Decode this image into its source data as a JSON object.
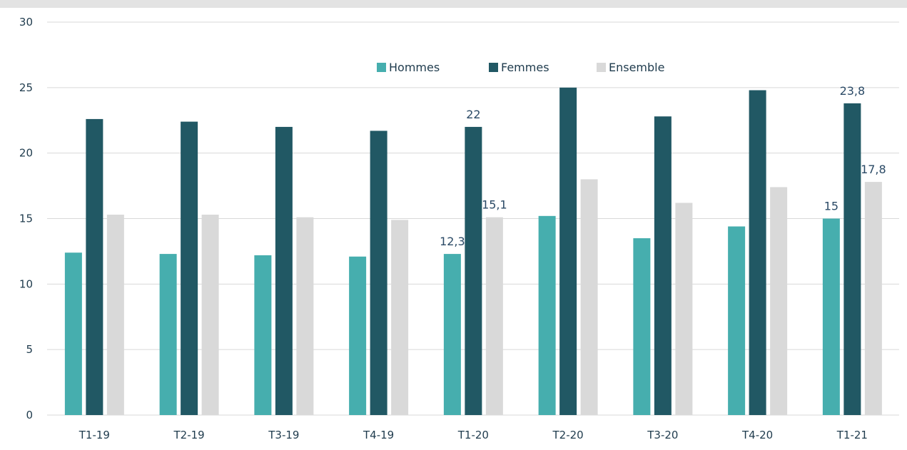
{
  "chart_data": {
    "type": "bar",
    "categories": [
      "T1-19",
      "T2-19",
      "T3-19",
      "T4-19",
      "T1-20",
      "T2-20",
      "T3-20",
      "T4-20",
      "T1-21"
    ],
    "series": [
      {
        "name": "Hommes",
        "color": "#46aeae",
        "values": [
          12.4,
          12.3,
          12.2,
          12.1,
          12.3,
          15.2,
          13.5,
          14.4,
          15.0
        ]
      },
      {
        "name": "Femmes",
        "color": "#215864",
        "values": [
          22.6,
          22.4,
          22.0,
          21.7,
          22.0,
          25.0,
          22.8,
          24.8,
          23.8
        ]
      },
      {
        "name": "Ensemble",
        "color": "#d9d9d9",
        "values": [
          15.3,
          15.3,
          15.1,
          14.9,
          15.1,
          18.0,
          16.2,
          17.4,
          17.8
        ]
      }
    ],
    "data_labels": [
      {
        "series": 0,
        "category": 4,
        "text": "12,3"
      },
      {
        "series": 1,
        "category": 4,
        "text": "22"
      },
      {
        "series": 2,
        "category": 4,
        "text": "15,1"
      },
      {
        "series": 0,
        "category": 8,
        "text": "15"
      },
      {
        "series": 1,
        "category": 8,
        "text": "23,8"
      },
      {
        "series": 2,
        "category": 8,
        "text": "17,8"
      }
    ],
    "yticks": [
      "0",
      "5",
      "10",
      "15",
      "20",
      "25",
      "30"
    ],
    "ylim": [
      0,
      30
    ],
    "grid": true,
    "legend_position": "top-center"
  }
}
